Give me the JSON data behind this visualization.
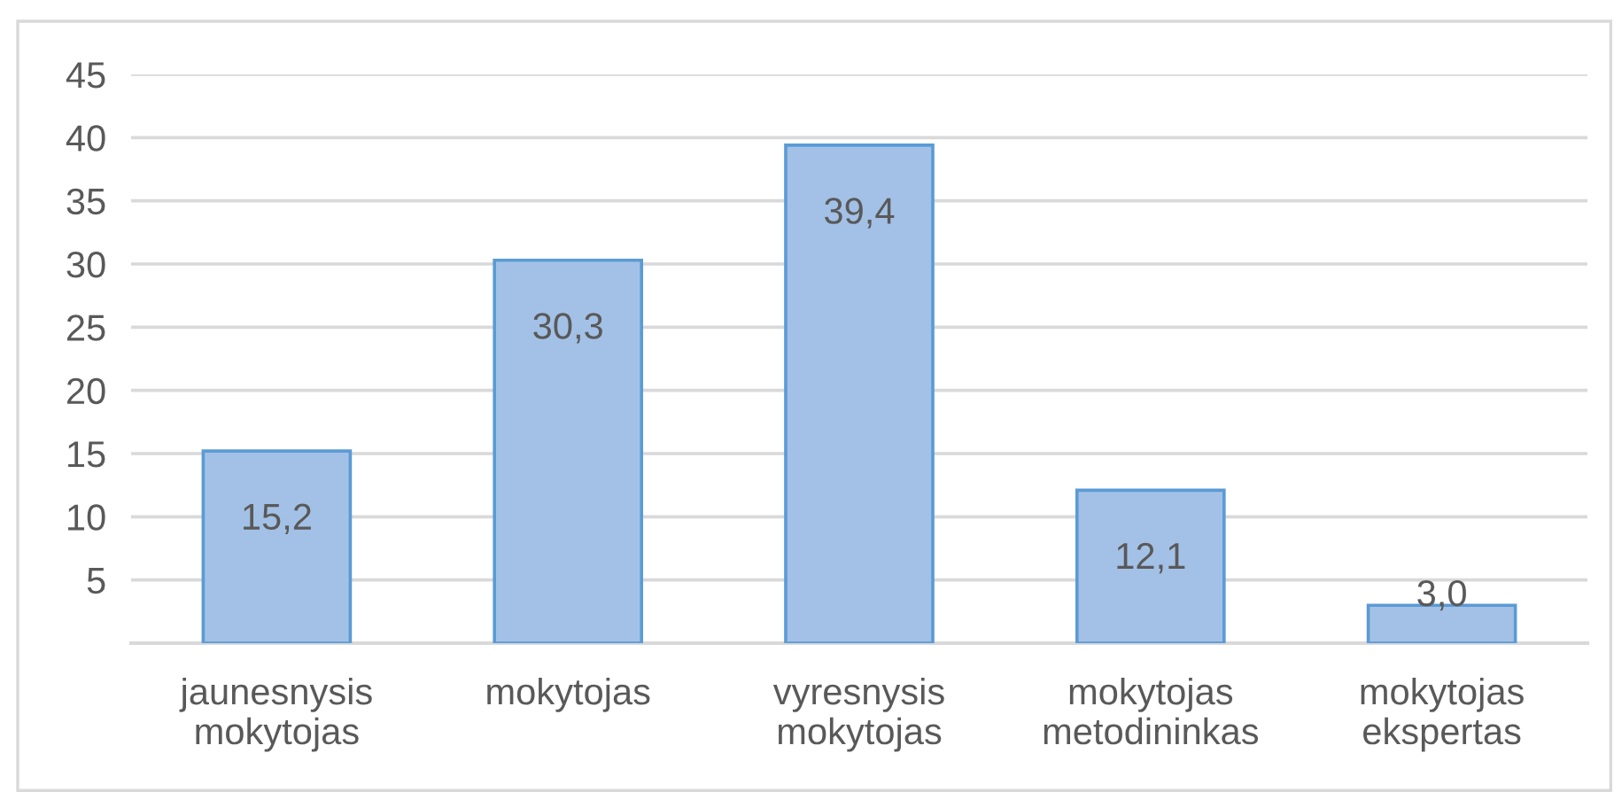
{
  "chart_data": {
    "type": "bar",
    "categories": [
      "jaunesnysis\nmokytojas",
      "mokytojas",
      "vyresnysis\nmokytojas",
      "mokytojas\nmetodininkas",
      "mokytojas\nekspertas"
    ],
    "values": [
      15.2,
      30.3,
      39.4,
      12.1,
      3.0
    ],
    "value_labels": [
      "15,2",
      "30,3",
      "39,4",
      "12,1",
      "3,0"
    ],
    "color": "#a3c1e6",
    "ylim": [
      0,
      45
    ],
    "yticks": [
      5,
      10,
      15,
      20,
      25,
      30,
      35,
      40,
      45
    ],
    "grid": "y",
    "legend": false
  }
}
